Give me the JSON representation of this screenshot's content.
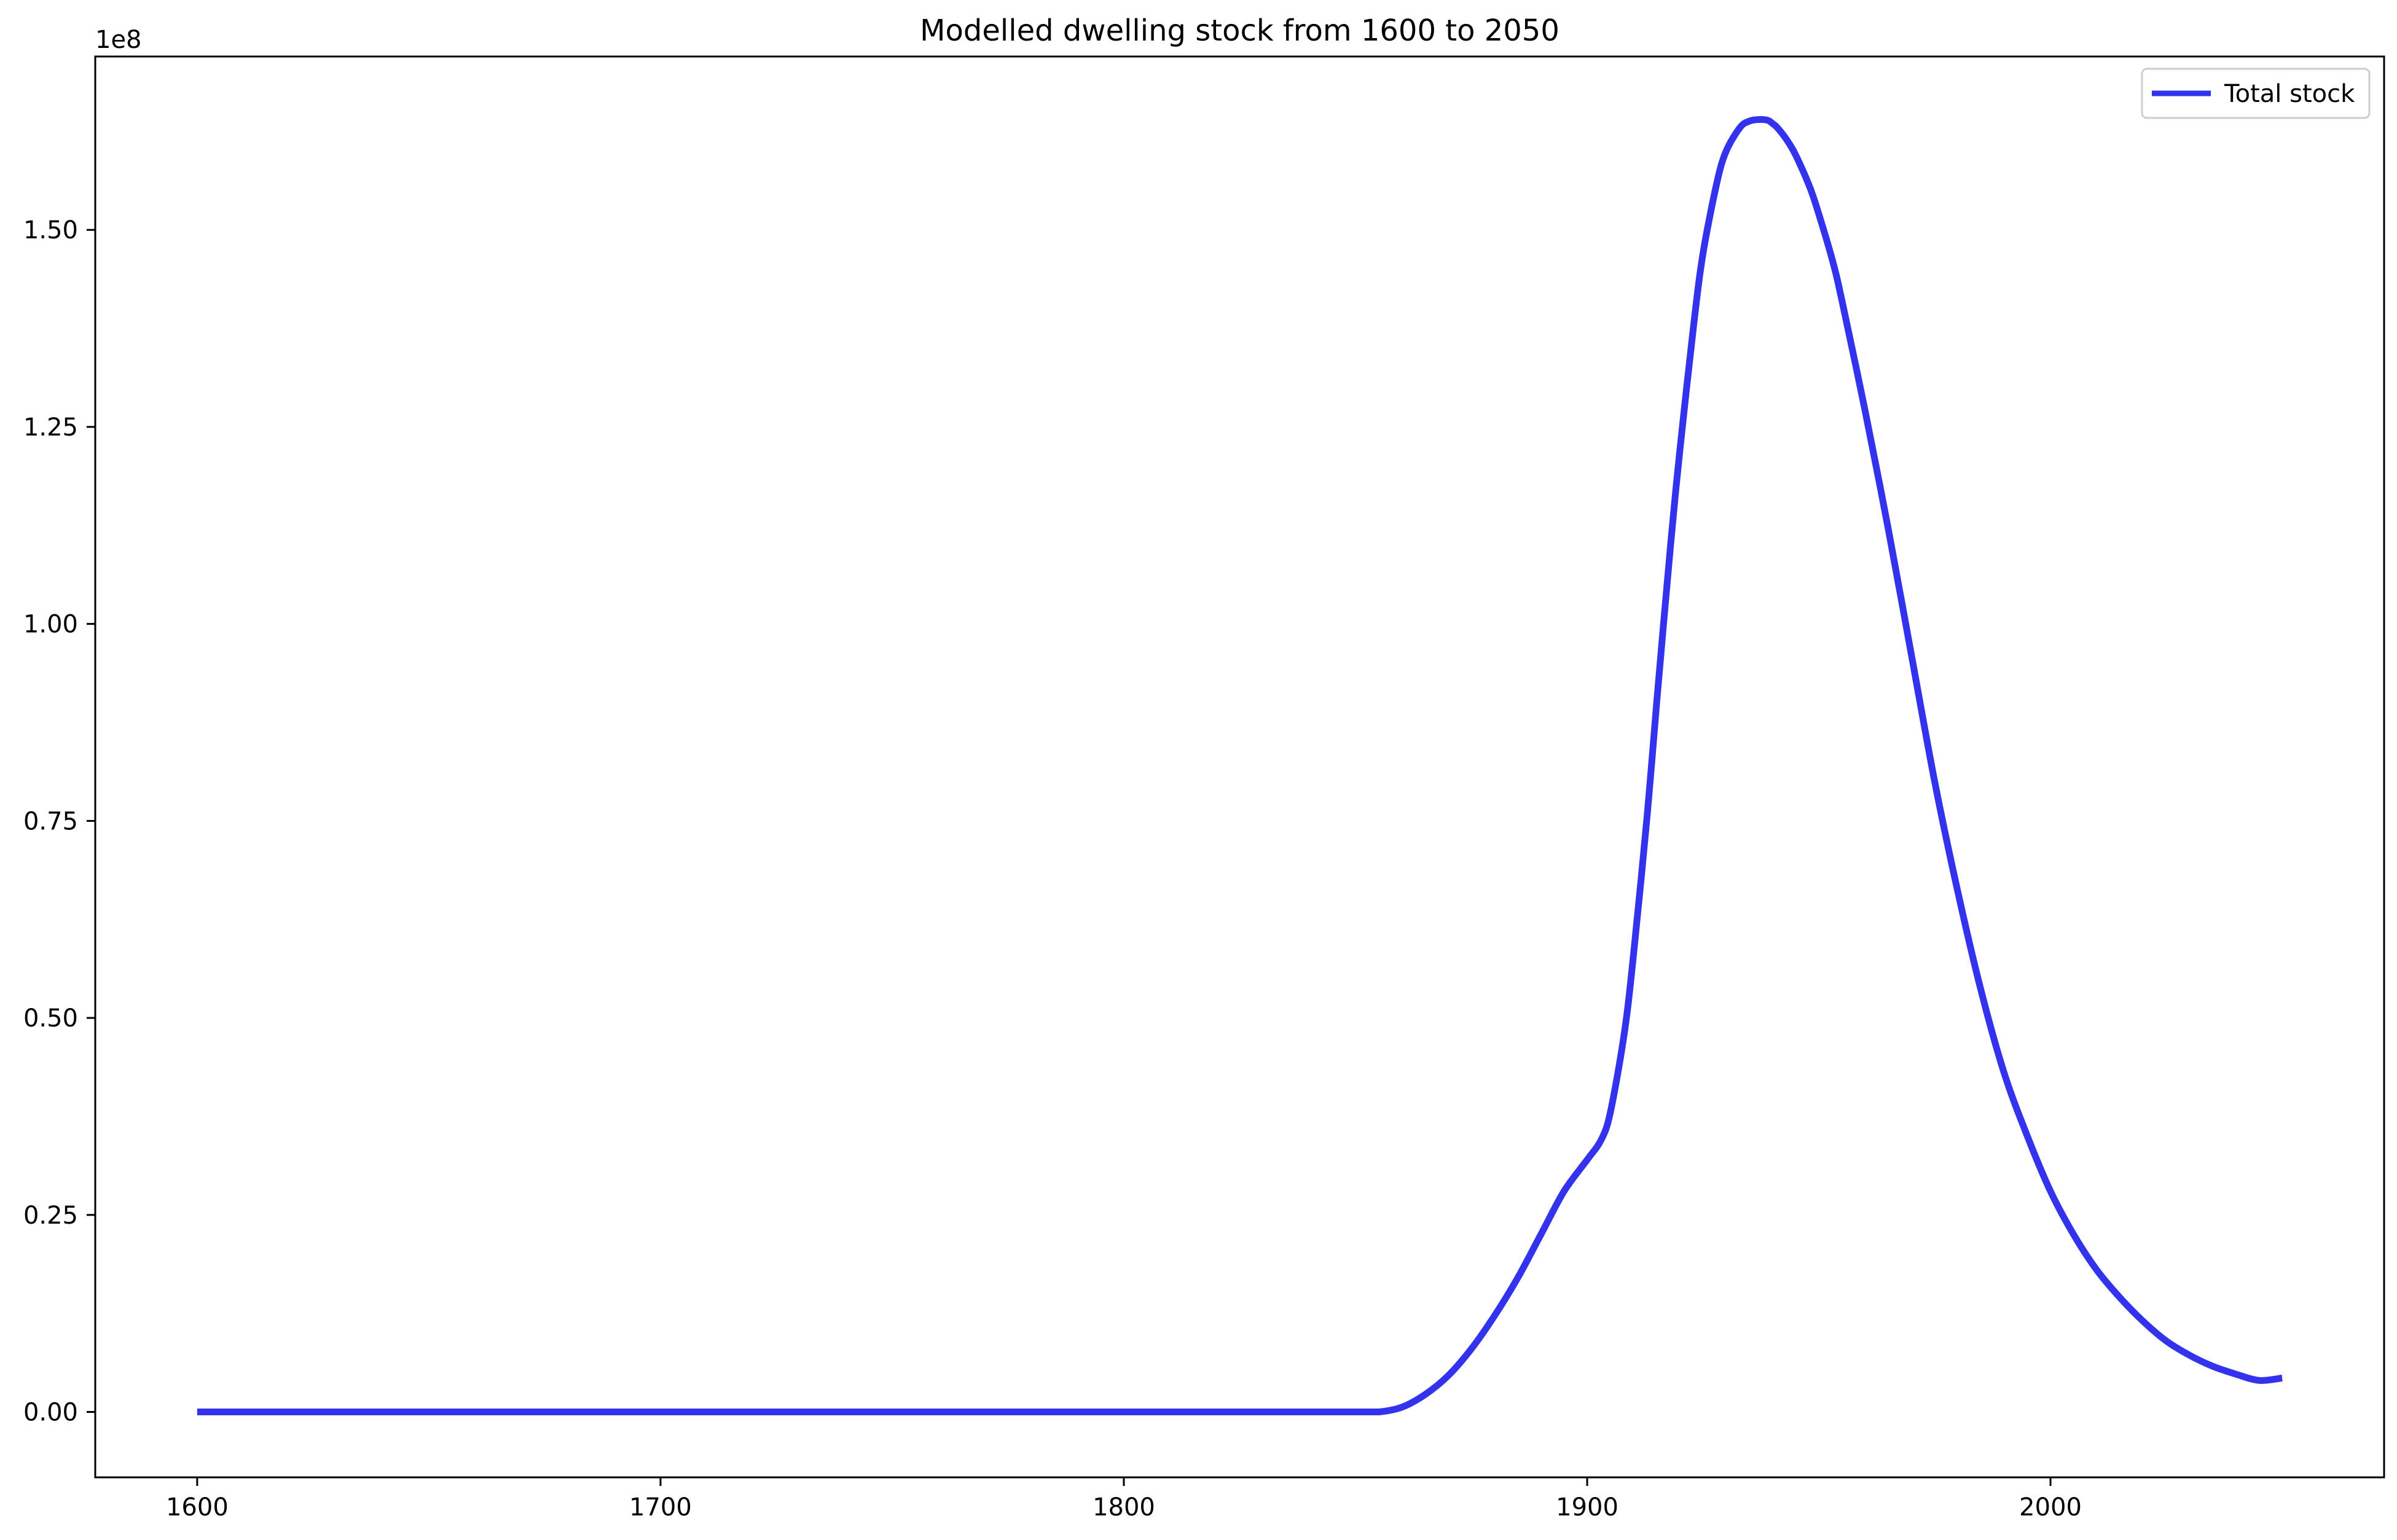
{
  "chart_data": {
    "type": "line",
    "title": "Modelled dwelling stock from 1600 to 2050",
    "xlabel": "",
    "ylabel": "",
    "y_offset_label": "1e8",
    "xlim": [
      1578,
      2072
    ],
    "ylim": [
      -8300000,
      172000000
    ],
    "x_ticks": [
      1600,
      1700,
      1800,
      1900,
      2000
    ],
    "x_tick_labels": [
      "1600",
      "1700",
      "1800",
      "1900",
      "2000"
    ],
    "y_ticks": [
      0,
      25000000,
      50000000,
      75000000,
      100000000,
      125000000,
      150000000
    ],
    "y_tick_labels": [
      "0.00",
      "0.25",
      "0.50",
      "0.75",
      "1.00",
      "1.25",
      "1.50"
    ],
    "grid": false,
    "legend_position": "top-right",
    "series": [
      {
        "name": "Total stock",
        "color": "#3333ee",
        "x": [
          1600,
          1700,
          1800,
          1850,
          1855,
          1860,
          1865,
          1870,
          1875,
          1880,
          1885,
          1890,
          1895,
          1900,
          1903,
          1905,
          1908,
          1910,
          1913,
          1915,
          1918,
          1920,
          1923,
          1925,
          1928,
          1930,
          1933,
          1935,
          1937,
          1939,
          1940,
          1941,
          1943,
          1945,
          1948,
          1950,
          1953,
          1955,
          1960,
          1965,
          1970,
          1975,
          1980,
          1985,
          1990,
          1995,
          2000,
          2005,
          2010,
          2015,
          2020,
          2025,
          2030,
          2035,
          2040,
          2045,
          2050
        ],
        "y": [
          0,
          0,
          0,
          0,
          0,
          600000,
          2200000,
          4600000,
          8000000,
          12200000,
          17000000,
          22500000,
          28000000,
          32000000,
          34500000,
          38000000,
          48000000,
          58000000,
          76000000,
          90000000,
          110000000,
          122000000,
          138000000,
          147000000,
          156000000,
          160000000,
          163000000,
          163800000,
          164000000,
          163900000,
          163500000,
          163000000,
          161500000,
          159500000,
          155500000,
          152000000,
          146000000,
          141000000,
          127000000,
          112000000,
          96000000,
          80000000,
          66000000,
          53500000,
          43000000,
          35000000,
          28000000,
          22500000,
          18000000,
          14500000,
          11500000,
          9000000,
          7200000,
          5800000,
          4800000,
          4000000,
          4300000
        ]
      }
    ]
  }
}
